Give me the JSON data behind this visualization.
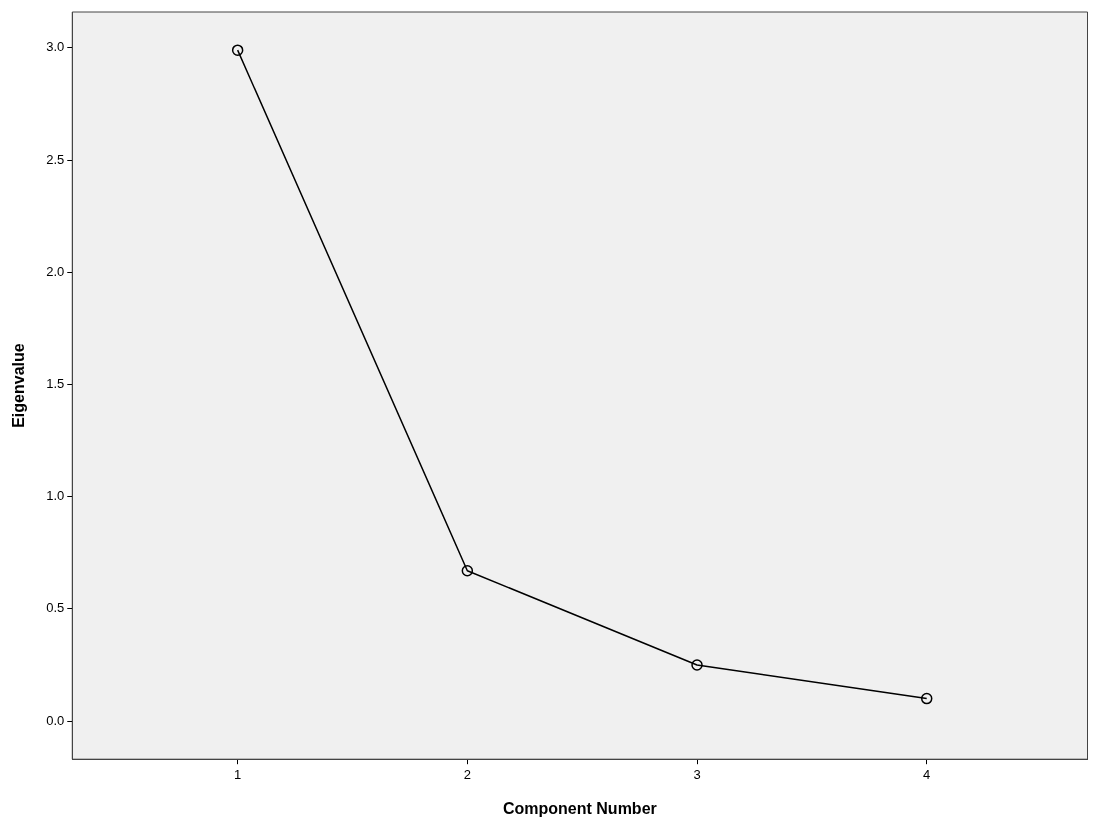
{
  "chart_data": {
    "type": "line",
    "xlabel": "Component Number",
    "ylabel": "Eigenvalue",
    "x": [
      1,
      2,
      3,
      4
    ],
    "series": [
      {
        "color": "#000000",
        "values": [
          2.99,
          0.67,
          0.25,
          0.1
        ]
      }
    ],
    "xlim": [
      0.28,
      4.7
    ],
    "xticks": [
      1,
      2,
      3,
      4
    ],
    "ylim": [
      -0.17,
      3.16
    ],
    "yticks": [
      {
        "value": 0,
        "label": "0.0"
      },
      {
        "value": 0.5,
        "label": "0.5"
      },
      {
        "value": 1,
        "label": "1.0"
      },
      {
        "value": 1.5,
        "label": "1.5"
      },
      {
        "value": 2,
        "label": "2.0"
      },
      {
        "value": 2.5,
        "label": "2.5"
      },
      {
        "value": 3,
        "label": "3.0"
      }
    ],
    "grid": false,
    "legend": false,
    "marker": "circle",
    "line_style": "solid"
  }
}
